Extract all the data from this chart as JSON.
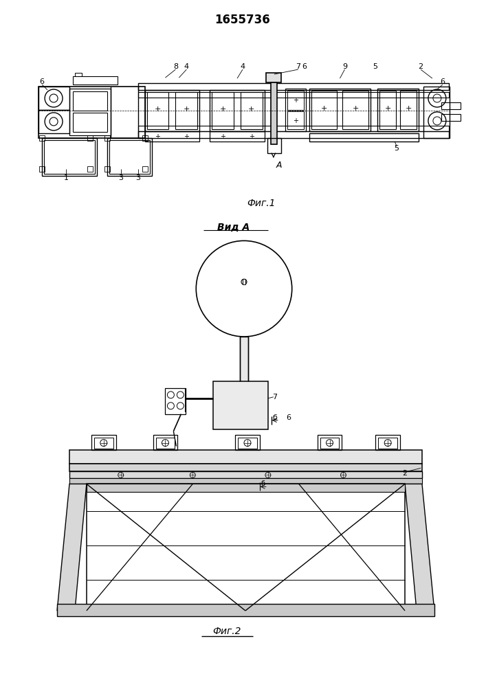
{
  "title": "1655736",
  "title_fontsize": 12,
  "fig1_label": "Фиг.1",
  "fig2_label": "Фиг.2",
  "vid_label": "Вид A",
  "background": "#ffffff",
  "line_color": "#000000",
  "line_width": 0.8
}
